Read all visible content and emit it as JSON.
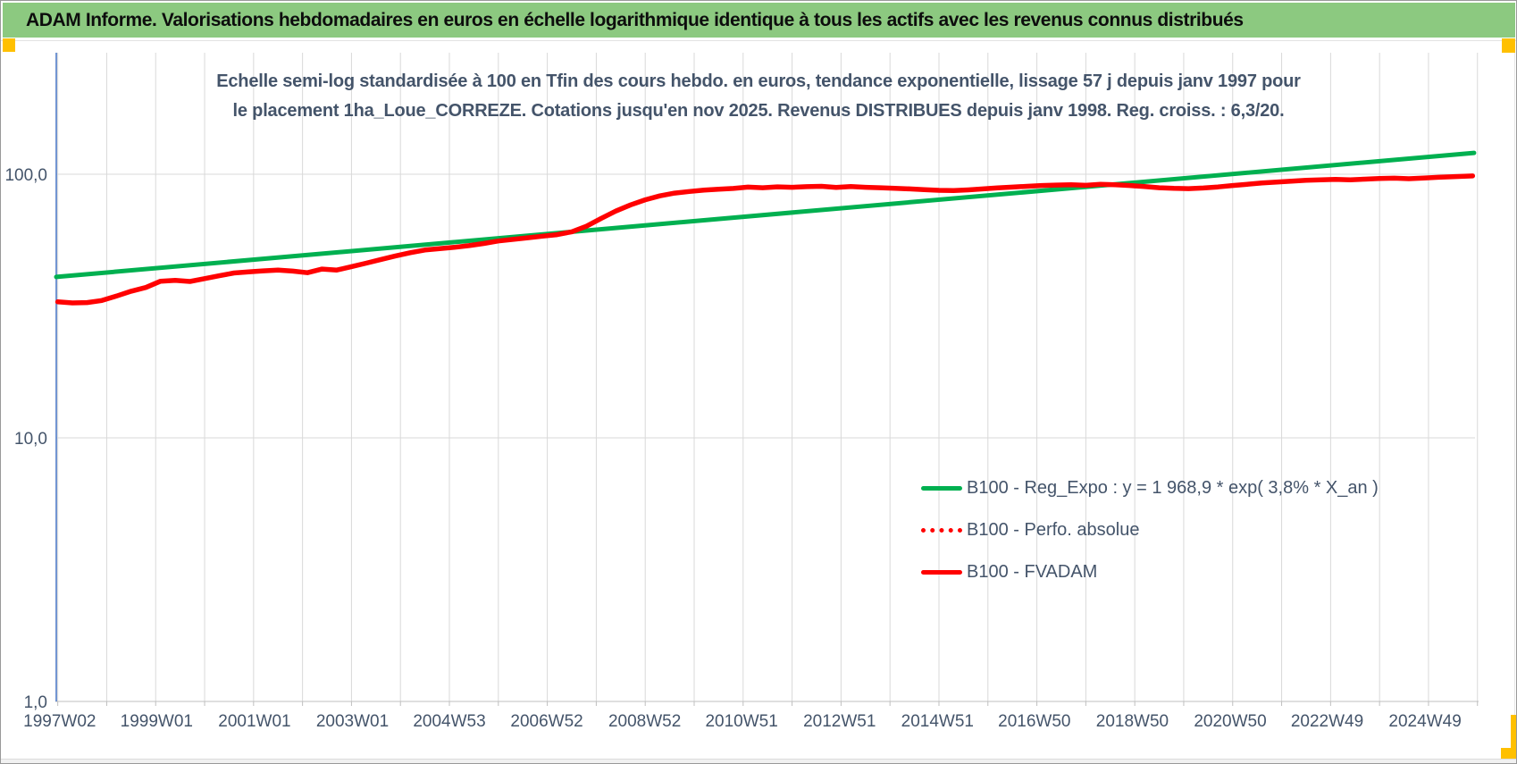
{
  "header": {
    "title": "ADAM Informe. Valorisations hebdomadaires en euros en échelle logarithmique identique à tous les actifs avec les revenus connus distribués"
  },
  "colors": {
    "header_green": "#8CC980",
    "reg_expo_green": "#00B050",
    "series_red": "#FF0000",
    "axis_text": "#44546A",
    "title_text": "#44546A",
    "selection_yellow": "#FFC000",
    "gridline": "#D9D9D9",
    "y_axis_line": "#4472C4"
  },
  "chart_data": {
    "type": "line",
    "title": "Echelle semi-log standardisée à 100 en Tfin des cours hebdo. en euros, tendance exponentielle, lissage 57 j depuis janv 1997 pour le placement 1ha_Loue_CORREZE. Cotations jusqu'en nov 2025. Revenus DISTRIBUES depuis janv 1998. Reg. croiss. : 6,3/20.",
    "y_axis": {
      "scale": "log",
      "ylim": [
        1,
        200
      ],
      "ticks": [
        {
          "label": "100,0",
          "value": 100
        },
        {
          "label": "10,0",
          "value": 10
        },
        {
          "label": "1,0",
          "value": 1
        }
      ]
    },
    "x_axis": {
      "range": [
        1996.97,
        2025.95
      ],
      "gridline_years": [
        1997,
        2026
      ],
      "ticks": [
        {
          "label": "1997W02",
          "t": 1997.04
        },
        {
          "label": "1999W01",
          "t": 1999.02
        },
        {
          "label": "2001W01",
          "t": 2001.02
        },
        {
          "label": "2003W01",
          "t": 2003.02
        },
        {
          "label": "2004W53",
          "t": 2005.0
        },
        {
          "label": "2006W52",
          "t": 2006.99
        },
        {
          "label": "2008W52",
          "t": 2008.99
        },
        {
          "label": "2010W51",
          "t": 2010.97
        },
        {
          "label": "2012W51",
          "t": 2012.97
        },
        {
          "label": "2014W51",
          "t": 2014.97
        },
        {
          "label": "2016W50",
          "t": 2016.95
        },
        {
          "label": "2018W50",
          "t": 2018.95
        },
        {
          "label": "2020W50",
          "t": 2020.95
        },
        {
          "label": "2022W49",
          "t": 2022.93
        },
        {
          "label": "2024W49",
          "t": 2024.93
        }
      ]
    },
    "legend_position": "inside-lower-right",
    "series": [
      {
        "name": "B100 - Reg_Expo : y = 1 968,9 * exp( 3,8% *  X_an )",
        "color": "#00B050",
        "style": "solid",
        "width": 5,
        "points": [
          [
            1996.97,
            40.8
          ],
          [
            2025.93,
            120.5
          ]
        ]
      },
      {
        "name": "B100 - Perfo. absolue",
        "color": "#FF0000",
        "style": "dotted",
        "width": 4,
        "same_points_as": 2
      },
      {
        "name": "B100 - FVADAM",
        "color": "#FF0000",
        "style": "solid",
        "width": 5.5,
        "points": [
          [
            1997.0,
            32.8
          ],
          [
            1997.3,
            32.5
          ],
          [
            1997.6,
            32.6
          ],
          [
            1997.9,
            33.2
          ],
          [
            1998.2,
            34.5
          ],
          [
            1998.5,
            36.0
          ],
          [
            1998.8,
            37.2
          ],
          [
            1999.1,
            39.3
          ],
          [
            1999.4,
            39.6
          ],
          [
            1999.7,
            39.2
          ],
          [
            2000.0,
            40.2
          ],
          [
            2000.3,
            41.2
          ],
          [
            2000.6,
            42.2
          ],
          [
            2000.9,
            42.6
          ],
          [
            2001.2,
            43.0
          ],
          [
            2001.5,
            43.3
          ],
          [
            2001.8,
            42.9
          ],
          [
            2002.1,
            42.3
          ],
          [
            2002.4,
            43.7
          ],
          [
            2002.7,
            43.3
          ],
          [
            2003.0,
            44.6
          ],
          [
            2003.3,
            46.0
          ],
          [
            2003.6,
            47.5
          ],
          [
            2003.9,
            49.0
          ],
          [
            2004.2,
            50.4
          ],
          [
            2004.5,
            51.6
          ],
          [
            2004.8,
            52.2
          ],
          [
            2005.1,
            52.8
          ],
          [
            2005.4,
            53.6
          ],
          [
            2005.7,
            54.6
          ],
          [
            2006.0,
            55.8
          ],
          [
            2006.3,
            56.6
          ],
          [
            2006.6,
            57.4
          ],
          [
            2006.9,
            58.2
          ],
          [
            2007.2,
            59.0
          ],
          [
            2007.5,
            60.5
          ],
          [
            2007.8,
            63.5
          ],
          [
            2008.1,
            68.0
          ],
          [
            2008.4,
            72.5
          ],
          [
            2008.7,
            76.5
          ],
          [
            2009.0,
            80.0
          ],
          [
            2009.3,
            82.8
          ],
          [
            2009.6,
            84.8
          ],
          [
            2009.9,
            86.0
          ],
          [
            2010.2,
            87.0
          ],
          [
            2010.5,
            87.8
          ],
          [
            2010.8,
            88.3
          ],
          [
            2011.1,
            89.4
          ],
          [
            2011.4,
            88.9
          ],
          [
            2011.7,
            89.6
          ],
          [
            2012.0,
            89.2
          ],
          [
            2012.3,
            89.7
          ],
          [
            2012.6,
            90.0
          ],
          [
            2012.9,
            89.1
          ],
          [
            2013.2,
            89.8
          ],
          [
            2013.5,
            89.2
          ],
          [
            2013.8,
            88.9
          ],
          [
            2014.1,
            88.5
          ],
          [
            2014.4,
            88.0
          ],
          [
            2014.7,
            87.4
          ],
          [
            2015.0,
            86.9
          ],
          [
            2015.3,
            86.7
          ],
          [
            2015.6,
            87.2
          ],
          [
            2015.9,
            88.0
          ],
          [
            2016.2,
            88.8
          ],
          [
            2016.5,
            89.4
          ],
          [
            2016.8,
            90.0
          ],
          [
            2017.1,
            90.6
          ],
          [
            2017.4,
            91.0
          ],
          [
            2017.7,
            91.3
          ],
          [
            2018.0,
            90.8
          ],
          [
            2018.3,
            91.6
          ],
          [
            2018.6,
            91.2
          ],
          [
            2018.9,
            90.6
          ],
          [
            2019.2,
            89.8
          ],
          [
            2019.5,
            88.9
          ],
          [
            2019.8,
            88.4
          ],
          [
            2020.1,
            88.2
          ],
          [
            2020.4,
            88.7
          ],
          [
            2020.7,
            89.5
          ],
          [
            2021.0,
            90.6
          ],
          [
            2021.3,
            91.6
          ],
          [
            2021.6,
            92.6
          ],
          [
            2021.9,
            93.4
          ],
          [
            2022.2,
            94.2
          ],
          [
            2022.5,
            94.8
          ],
          [
            2022.8,
            95.2
          ],
          [
            2023.1,
            95.6
          ],
          [
            2023.4,
            95.3
          ],
          [
            2023.7,
            95.8
          ],
          [
            2024.0,
            96.3
          ],
          [
            2024.3,
            96.6
          ],
          [
            2024.6,
            96.2
          ],
          [
            2024.9,
            96.8
          ],
          [
            2025.2,
            97.4
          ],
          [
            2025.5,
            97.9
          ],
          [
            2025.9,
            98.5
          ]
        ]
      }
    ]
  }
}
